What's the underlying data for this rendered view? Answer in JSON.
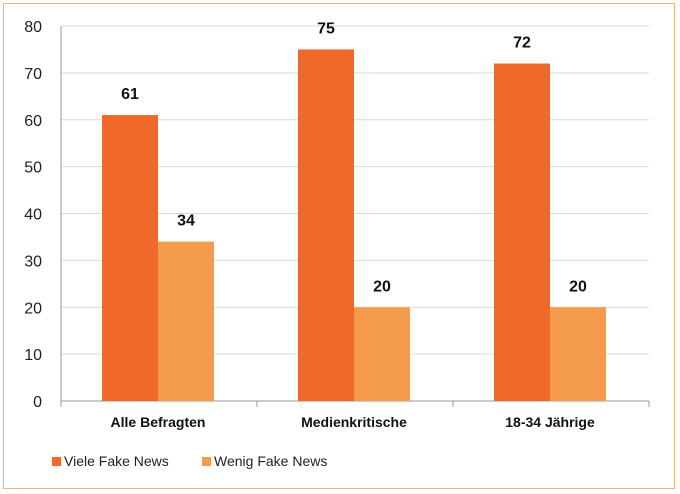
{
  "chart_data": {
    "type": "bar",
    "categories": [
      "Alle Befragten",
      "Medienkritische",
      "18-34 Jährige"
    ],
    "series": [
      {
        "name": "Viele Fake News",
        "values": [
          61,
          75,
          72
        ],
        "color": "#f0682a"
      },
      {
        "name": "Wenig Fake News",
        "values": [
          34,
          20,
          20
        ],
        "color": "#f49b4c"
      }
    ],
    "ylim": [
      0,
      80
    ],
    "yticks": [
      0,
      10,
      20,
      30,
      40,
      50,
      60,
      70,
      80
    ],
    "grid": true,
    "legend": "bottom-left",
    "data_labels": true
  }
}
